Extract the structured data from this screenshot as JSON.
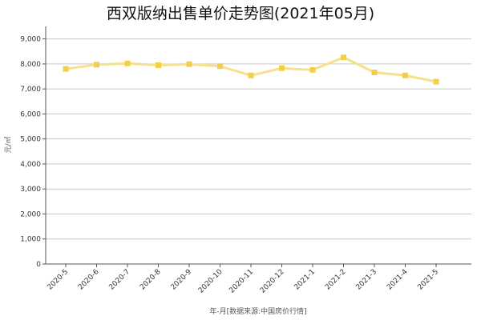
{
  "chart_data": {
    "type": "line",
    "title": "西双版纳出售单价走势图(2021年05月)",
    "xlabel": "年-月[数据来源:中国房价行情]",
    "ylabel": "元/㎡",
    "categories": [
      "2020-5",
      "2020-6",
      "2020-7",
      "2020-8",
      "2020-9",
      "2020-10",
      "2020-11",
      "2020-12",
      "2021-1",
      "2021-2",
      "2021-3",
      "2021-4",
      "2021-5"
    ],
    "series": [
      {
        "values": [
          7800,
          7970,
          8020,
          7950,
          7990,
          7910,
          7540,
          7830,
          7760,
          8260,
          7660,
          7540,
          7290
        ]
      }
    ],
    "yticks": [
      "0",
      "1,000",
      "2,000",
      "3,000",
      "4,000",
      "5,000",
      "6,000",
      "7,000",
      "8,000",
      "9,000"
    ],
    "ylim": [
      0,
      9500
    ],
    "grid": "horizontal",
    "colors": {
      "line": "#f7e08a",
      "marker": "#f2cf4a",
      "grid": "#c8c8c8",
      "axis": "#555555"
    }
  }
}
